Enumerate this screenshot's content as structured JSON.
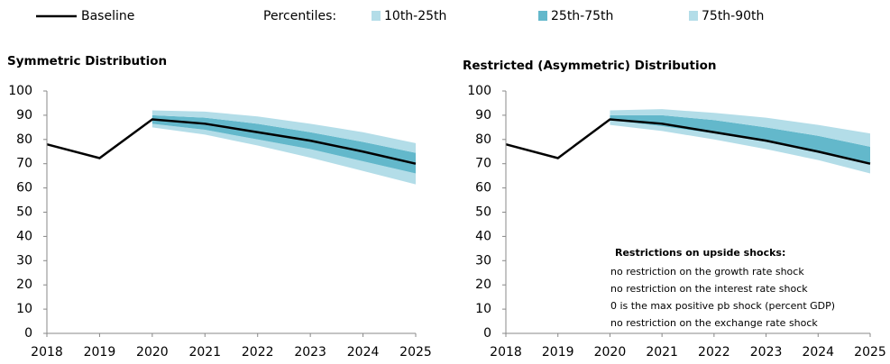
{
  "legend": {
    "baseline": "Baseline",
    "baseline_color": "#000000",
    "percentiles": "Percentiles:",
    "bands": [
      {
        "name": "10th-25th",
        "color": "#b3dde8"
      },
      {
        "name": "25th-75th",
        "color": "#63b8cb"
      },
      {
        "name": "75th-90th",
        "color": "#b3dde8"
      }
    ]
  },
  "chart_data": [
    {
      "type": "fan",
      "title": "Symmetric Distribution",
      "x": [
        2018,
        2019,
        2020,
        2021,
        2022,
        2023,
        2024,
        2025
      ],
      "baseline": [
        78,
        72.3,
        88.3,
        86.5,
        83,
        79.5,
        75,
        70
      ],
      "bands": [
        {
          "lower": [
            null,
            null,
            85,
            82,
            77.5,
            72.5,
            67,
            61.5
          ],
          "upper": [
            null,
            null,
            86.5,
            84,
            80,
            76,
            71,
            66
          ]
        },
        {
          "lower": [
            null,
            null,
            86.5,
            84,
            80,
            76,
            71,
            66
          ],
          "upper": [
            null,
            null,
            90,
            89,
            86.5,
            83,
            79,
            74.5
          ]
        },
        {
          "lower": [
            null,
            null,
            90,
            89,
            86.5,
            83,
            79,
            74.5
          ],
          "upper": [
            null,
            null,
            92,
            91.5,
            89.5,
            86.5,
            83,
            78.5
          ]
        }
      ],
      "xlim": [
        2018,
        2025
      ],
      "xticks": [
        2018,
        2019,
        2020,
        2021,
        2022,
        2023,
        2024,
        2025
      ],
      "ylim": [
        0,
        100
      ],
      "yticks": [
        0,
        10,
        20,
        30,
        40,
        50,
        60,
        70,
        80,
        90,
        100
      ]
    },
    {
      "type": "fan",
      "title": "Restricted (Asymmetric) Distribution",
      "x": [
        2018,
        2019,
        2020,
        2021,
        2022,
        2023,
        2024,
        2025
      ],
      "baseline": [
        78,
        72.3,
        88.3,
        86.5,
        83,
        79.5,
        75,
        70
      ],
      "bands": [
        {
          "lower": [
            null,
            null,
            86,
            83.5,
            80,
            76,
            71.5,
            66
          ],
          "upper": [
            null,
            null,
            88,
            85.5,
            82.5,
            79,
            74.5,
            70
          ]
        },
        {
          "lower": [
            null,
            null,
            88,
            85.5,
            82.5,
            79,
            74.5,
            70
          ],
          "upper": [
            null,
            null,
            90,
            90,
            88,
            85,
            81.5,
            77
          ]
        },
        {
          "lower": [
            null,
            null,
            90,
            90,
            88,
            85,
            81.5,
            77
          ],
          "upper": [
            null,
            null,
            92,
            92.5,
            91,
            89,
            86,
            82.5
          ]
        }
      ],
      "xlim": [
        2018,
        2025
      ],
      "xticks": [
        2018,
        2019,
        2020,
        2021,
        2022,
        2023,
        2024,
        2025
      ],
      "ylim": [
        0,
        100
      ],
      "yticks": [
        0,
        10,
        20,
        30,
        40,
        50,
        60,
        70,
        80,
        90,
        100
      ],
      "annotation": {
        "title": "Restrictions on upside shocks:",
        "lines": [
          "no restriction on the growth rate shock",
          "no restriction on the interest rate shock",
          "0 is the max positive pb shock (percent GDP)",
          "no restriction on the exchange rate shock"
        ]
      }
    }
  ]
}
